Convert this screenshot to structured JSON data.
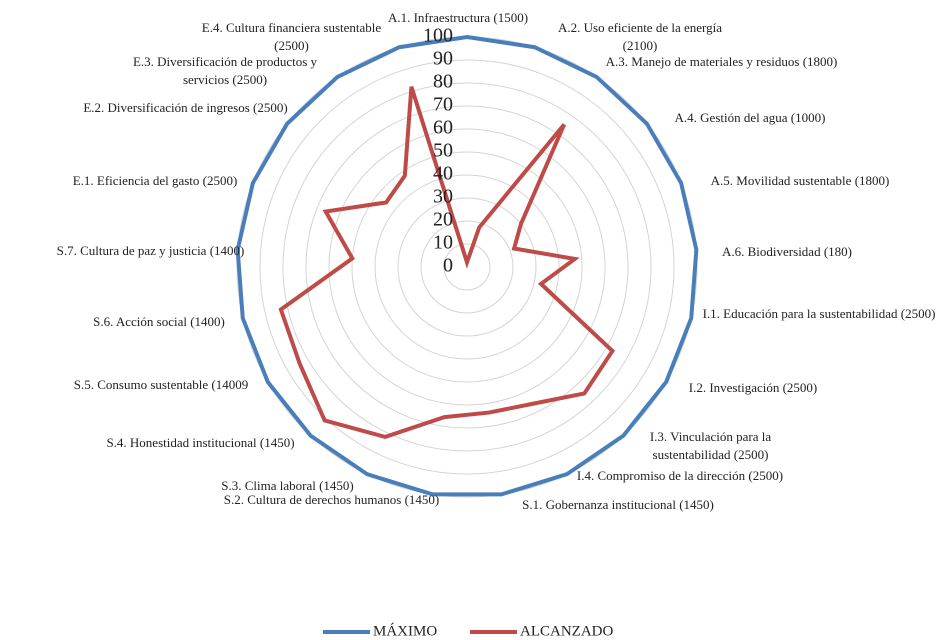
{
  "chart_data": {
    "type": "radar",
    "categories": [
      "A.1. Infraestructura (1500)",
      "A.2. Uso eficiente de la energía (2100)",
      "A.3. Manejo de materiales y residuos (1800)",
      "A.4. Gestión del agua (1000)",
      "A.5. Movilidad sustentable (1800)",
      "A.6. Biodiversidad (180)",
      "I.1. Educación para la sustentabilidad (2500)",
      "I.2. Investigación (2500)",
      "I.3. Vinculación para la sustentabilidad (2500)",
      "I.4. Compromiso de la dirección (2500)",
      "S.1. Gobernanza institucional (1450)",
      "S.2. Cultura de derechos humanos (1450)",
      "S.3. Clima laboral (1450)",
      "S.4. Honestidad institucional (1450)",
      "S.5. Consumo sustentable (14009",
      "S.6. Acción social (1400)",
      "S.7. Cultura de paz y justicia (1400)",
      "E.1. Eficiencia del gasto (2500)",
      "E.2. Diversificación de ingresos (2500)",
      "E.3. Diversificación de productos y servicios (2500)",
      "E.4. Cultura financiera sustentable (2500)"
    ],
    "series": [
      {
        "name": "MÁXIMO",
        "color": "#4a7ebb",
        "values": [
          100,
          100,
          100,
          100,
          100,
          100,
          100,
          100,
          100,
          100,
          100,
          100,
          100,
          100,
          100,
          100,
          100,
          100,
          100,
          100,
          100
        ]
      },
      {
        "name": "ALCANZADO",
        "color": "#be4b48",
        "values": [
          2,
          18,
          75,
          30,
          22,
          47,
          33,
          73,
          75,
          66,
          64,
          66,
          82,
          91,
          84,
          83,
          50,
          66,
          45,
          48,
          82
        ]
      }
    ],
    "ylim": [
      0,
      100
    ],
    "yticks": [
      0,
      10,
      20,
      30,
      40,
      50,
      60,
      70,
      80,
      90,
      100
    ],
    "grid": true,
    "legend": "bottom"
  }
}
